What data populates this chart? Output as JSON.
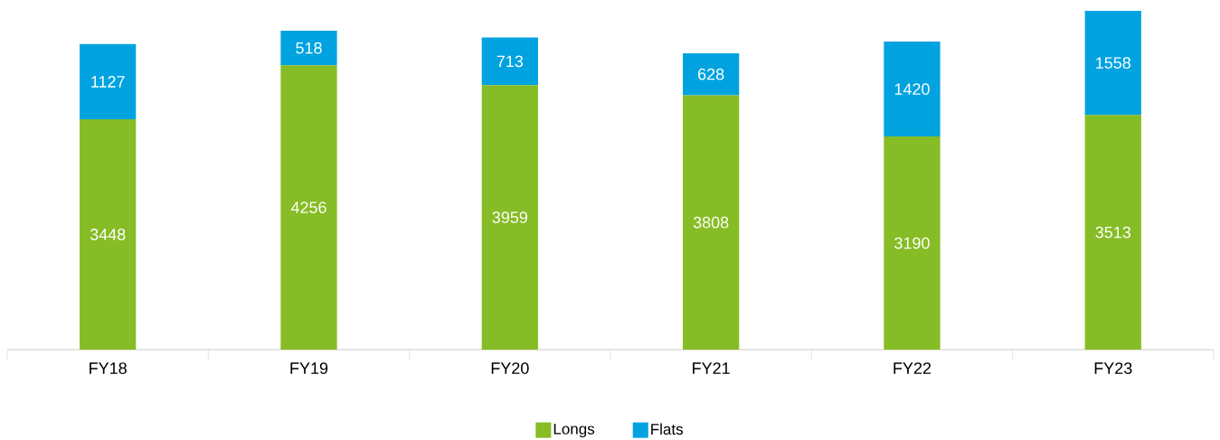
{
  "chart_data": {
    "type": "bar",
    "stacked": true,
    "data_labels": true,
    "legend": "bottom",
    "categories": [
      "FY18",
      "FY19",
      "FY20",
      "FY21",
      "FY22",
      "FY23"
    ],
    "series": [
      {
        "name": "Longs",
        "color": "#86bc25",
        "values": [
          3448,
          4256,
          3959,
          3808,
          3190,
          3513
        ]
      },
      {
        "name": "Flats",
        "color": "#00a3e0",
        "values": [
          1127,
          518,
          713,
          628,
          1420,
          1558
        ]
      }
    ]
  }
}
